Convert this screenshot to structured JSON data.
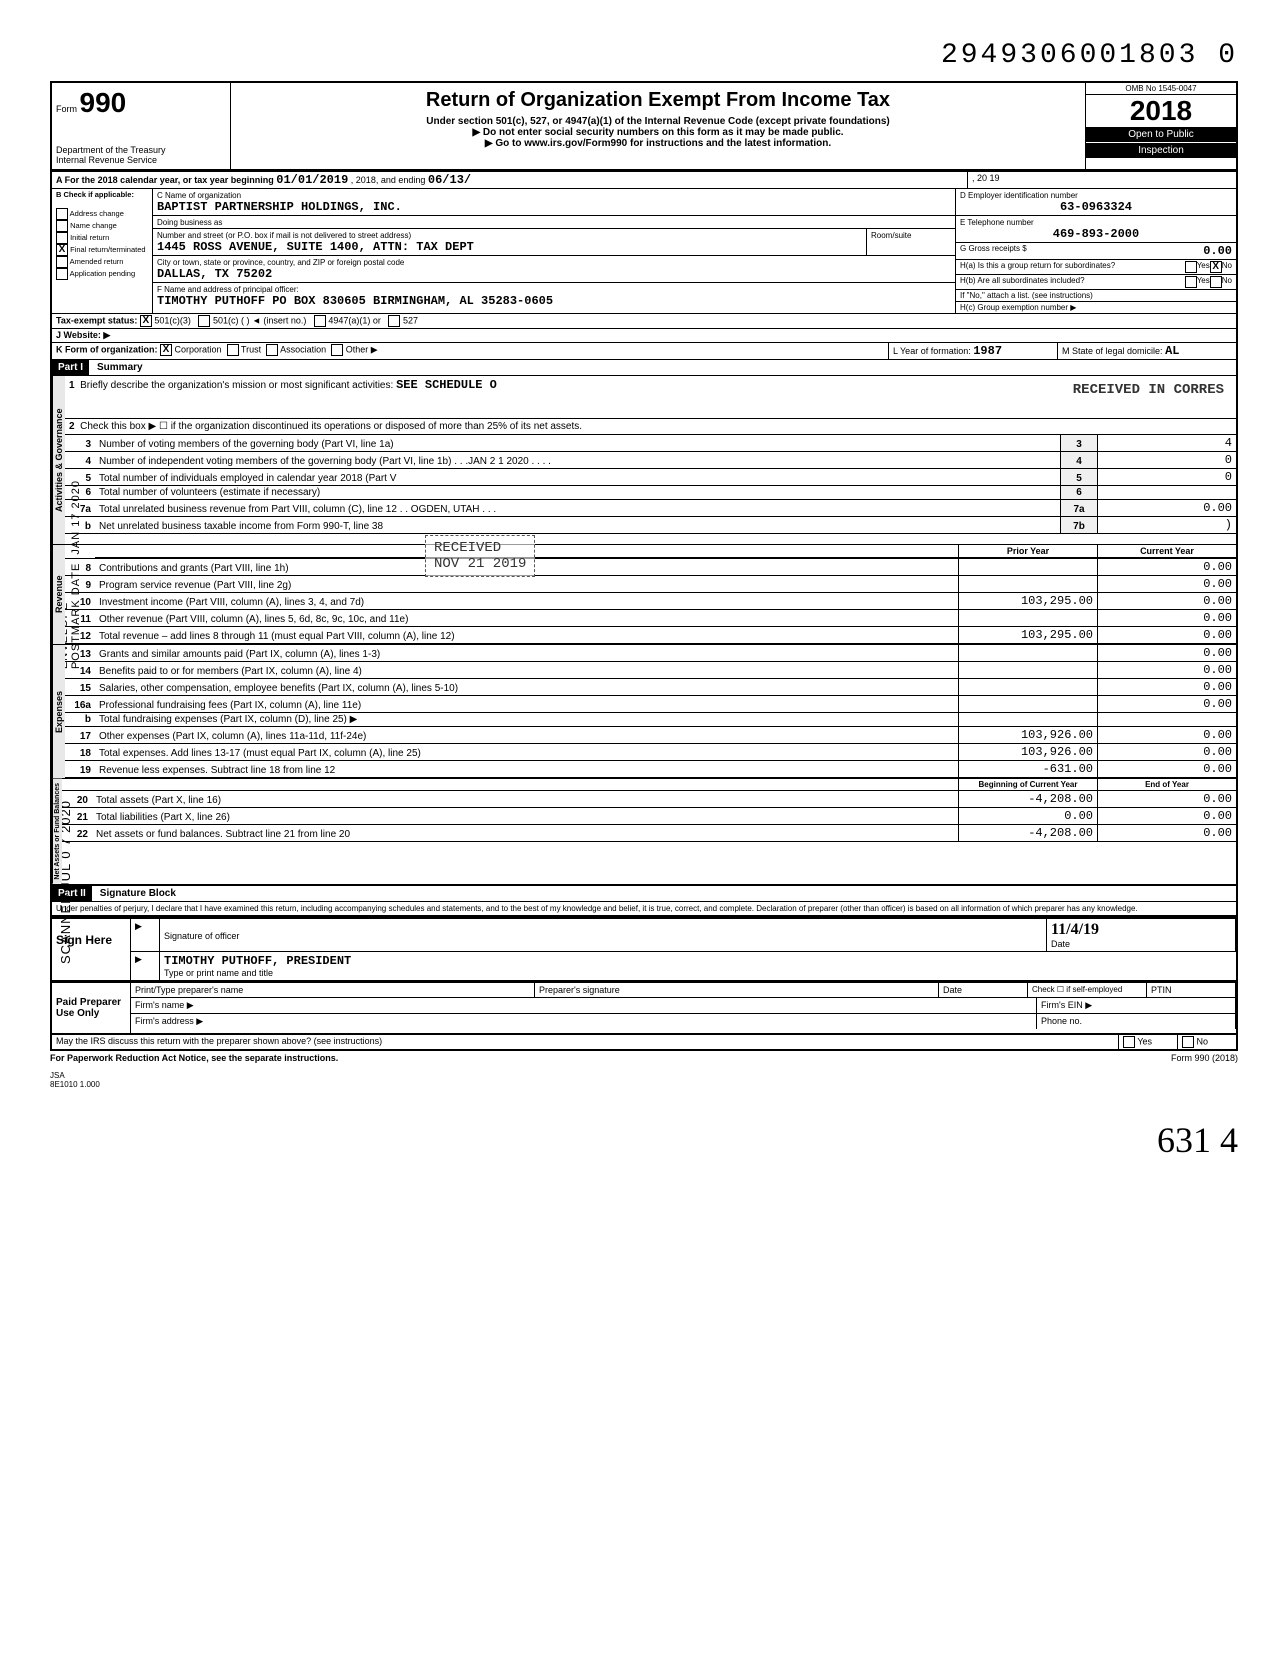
{
  "top_scan_number": "2949306001803  0",
  "form": {
    "form_label": "Form",
    "form_number": "990",
    "dept_line1": "Department of the Treasury",
    "dept_line2": "Internal Revenue Service",
    "title": "Return of Organization Exempt From Income Tax",
    "subtitle": "Under section 501(c), 527, or 4947(a)(1) of the Internal Revenue Code (except private foundations)",
    "note1": "▶ Do not enter social security numbers on this form as it may be made public.",
    "note2": "▶ Go to www.irs.gov/Form990 for instructions and the latest information.",
    "omb": "OMB No 1545-0047",
    "year": "2018",
    "open_public1": "Open to Public",
    "open_public2": "Inspection"
  },
  "A": {
    "label": "A  For the 2018 calendar year, or tax year beginning",
    "begin": "01/01/2019",
    "mid": ", 2018, and ending",
    "end_month": "06/13/",
    "end_year": ", 20 19"
  },
  "B": {
    "label": "B  Check if applicable:",
    "address_change": "Address change",
    "name_change": "Name change",
    "initial_return": "Initial return",
    "final_return": "Final return/terminated",
    "amended": "Amended return",
    "application": "Application pending",
    "final_checked": "X"
  },
  "C": {
    "label": "C Name of organization",
    "name": "BAPTIST PARTNERSHIP HOLDINGS, INC.",
    "dba_label": "Doing business as",
    "addr_label": "Number and street (or P.O. box if mail is not delivered to street address)",
    "room_label": "Room/suite",
    "addr": "1445 ROSS AVENUE, SUITE 1400, ATTN: TAX DEPT",
    "city_label": "City or town, state or province, country, and ZIP or foreign postal code",
    "city": "DALLAS, TX  75202",
    "F_label": "F Name and address of principal officer:",
    "officer": "TIMOTHY PUTHOFF PO BOX 830605 BIRMINGHAM, AL 35283-0605"
  },
  "D": {
    "label": "D Employer identification number",
    "ein": "63-0963324"
  },
  "E": {
    "label": "E Telephone number",
    "phone": "469-893-2000"
  },
  "G": {
    "label": "G Gross receipts $",
    "value": "0.00"
  },
  "H": {
    "a_label": "H(a) Is this a group return for subordinates?",
    "a_yes": "Yes",
    "a_no": "No",
    "a_no_checked": "X",
    "b_label": "H(b) Are all subordinates included?",
    "b_yes": "Yes",
    "b_no": "No",
    "b_note": "If \"No,\" attach a list. (see instructions)",
    "c_label": "H(c) Group exemption number ▶"
  },
  "I": {
    "label": "Tax-exempt status:",
    "c3": "501(c)(3)",
    "c3_checked": "X",
    "c": "501(c) (",
    "insert": "(insert no.)",
    "a1": "4947(a)(1) or",
    "527": "527"
  },
  "J": {
    "label": "J   Website: ▶"
  },
  "K": {
    "label": "K   Form of organization:",
    "corp": "Corporation",
    "corp_checked": "X",
    "trust": "Trust",
    "assoc": "Association",
    "other": "Other ▶"
  },
  "L": {
    "label": "L Year of formation:",
    "year": "1987"
  },
  "M": {
    "label": "M State of legal domicile:",
    "state": "AL"
  },
  "partI": {
    "hdr": "Part I",
    "title": "Summary",
    "line1_label": "Briefly describe the organization's mission or most significant activities:",
    "line1_val": "SEE SCHEDULE O",
    "line2": "Check this box ▶ ☐ if the organization discontinued its operations or disposed of more than 25% of its net assets.",
    "rows_gov": [
      {
        "n": "3",
        "desc": "Number of voting members of the governing body (Part VI, line 1a)",
        "box": "3",
        "val": "4"
      },
      {
        "n": "4",
        "desc": "Number of independent voting members of the governing body (Part VI, line 1b) . . .JAN 2 1 2020 . . . .",
        "box": "4",
        "val": "0"
      },
      {
        "n": "5",
        "desc": "Total number of individuals employed in calendar year 2018 (Part V",
        "box": "5",
        "val": "0"
      },
      {
        "n": "6",
        "desc": "Total number of volunteers (estimate if necessary)",
        "box": "6",
        "val": ""
      },
      {
        "n": "7a",
        "desc": "Total unrelated business revenue from Part VIII, column (C), line 12     . . OGDEN, UTAH . . .",
        "box": "7a",
        "val": "0.00"
      },
      {
        "n": "b",
        "desc": "Net unrelated business taxable income from Form 990-T, line 38",
        "box": "7b",
        "val": ")"
      }
    ],
    "col_prior": "Prior Year",
    "col_current": "Current Year",
    "rows_rev": [
      {
        "n": "8",
        "desc": "Contributions and grants (Part VIII, line 1h)",
        "prior": "",
        "cur": "0.00"
      },
      {
        "n": "9",
        "desc": "Program service revenue (Part VIII, line 2g)",
        "prior": "",
        "cur": "0.00"
      },
      {
        "n": "10",
        "desc": "Investment income (Part VIII, column (A), lines 3, 4, and 7d)",
        "prior": "103,295.00",
        "cur": "0.00"
      },
      {
        "n": "11",
        "desc": "Other revenue (Part VIII, column (A), lines 5, 6d, 8c, 9c, 10c, and 11e)",
        "prior": "",
        "cur": "0.00"
      },
      {
        "n": "12",
        "desc": "Total revenue – add lines 8 through 11 (must equal Part VIII, column (A), line 12)",
        "prior": "103,295.00",
        "cur": "0.00"
      }
    ],
    "rows_exp": [
      {
        "n": "13",
        "desc": "Grants and similar amounts paid (Part IX, column (A), lines 1-3)",
        "prior": "",
        "cur": "0.00"
      },
      {
        "n": "14",
        "desc": "Benefits paid to or for members (Part IX, column (A), line 4)",
        "prior": "",
        "cur": "0.00"
      },
      {
        "n": "15",
        "desc": "Salaries, other compensation, employee benefits (Part IX, column (A), lines 5-10)",
        "prior": "",
        "cur": "0.00"
      },
      {
        "n": "16a",
        "desc": "Professional fundraising fees (Part IX, column (A), line 11e)",
        "prior": "",
        "cur": "0.00"
      },
      {
        "n": "b",
        "desc": "Total fundraising expenses (Part IX, column (D), line 25) ▶",
        "prior": "",
        "cur": ""
      },
      {
        "n": "17",
        "desc": "Other expenses (Part IX, column (A), lines 11a-11d, 11f-24e)",
        "prior": "103,926.00",
        "cur": "0.00"
      },
      {
        "n": "18",
        "desc": "Total expenses. Add lines 13-17 (must equal Part IX, column (A), line 25)",
        "prior": "103,926.00",
        "cur": "0.00"
      },
      {
        "n": "19",
        "desc": "Revenue less expenses. Subtract line 18 from line 12",
        "prior": "-631.00",
        "cur": "0.00"
      }
    ],
    "col_begin": "Beginning of Current Year",
    "col_end": "End of Year",
    "rows_net": [
      {
        "n": "20",
        "desc": "Total assets (Part X, line 16)",
        "prior": "-4,208.00",
        "cur": "0.00"
      },
      {
        "n": "21",
        "desc": "Total liabilities (Part X, line 26)",
        "prior": "0.00",
        "cur": "0.00"
      },
      {
        "n": "22",
        "desc": "Net assets or fund balances. Subtract line 21 from line 20",
        "prior": "-4,208.00",
        "cur": "0.00"
      }
    ],
    "side_gov": "Activities & Governance",
    "side_rev": "Revenue",
    "side_exp": "Expenses",
    "side_net": "Net Assets or Fund Balances"
  },
  "partII": {
    "hdr": "Part II",
    "title": "Signature Block",
    "perjury": "Under penalties of perjury, I declare that I have examined this return, including accompanying schedules and statements, and to the best of my knowledge and belief, it is true, correct, and complete. Declaration of preparer (other than officer) is based on all information of which preparer has any knowledge.",
    "sign_here": "Sign Here",
    "sig_label": "Signature of officer",
    "date_label": "Date",
    "date_val": "11/4/19",
    "name_label": "Type or print name and title",
    "name_val": "TIMOTHY PUTHOFF, PRESIDENT",
    "paid": "Paid Preparer Use Only",
    "prep_name": "Print/Type preparer's name",
    "prep_sig": "Preparer's signature",
    "prep_date": "Date",
    "check_self": "Check ☐ if self-employed",
    "ptin": "PTIN",
    "firm_name": "Firm's name ▶",
    "firm_ein": "Firm's EIN ▶",
    "firm_addr": "Firm's address ▶",
    "firm_phone": "Phone no.",
    "irs_discuss": "May the IRS discuss this return with the preparer shown above? (see instructions)",
    "yes": "Yes",
    "no": "No"
  },
  "footer": {
    "pra": "For Paperwork Reduction Act Notice, see the separate instructions.",
    "form": "Form 990 (2018)",
    "jsa": "JSA",
    "code": "8E1010 1.000"
  },
  "stamps": {
    "received_corres": "RECEIVED IN CORRES",
    "received": "RECEIVED",
    "nov": "NOV 21 2019",
    "scanned": "SCANNED  JUL 0 7 2020",
    "envelope": "ENVELOPE —\nPOSTMARK DATE  JAN 17 2020"
  },
  "handwritten": "631  4"
}
